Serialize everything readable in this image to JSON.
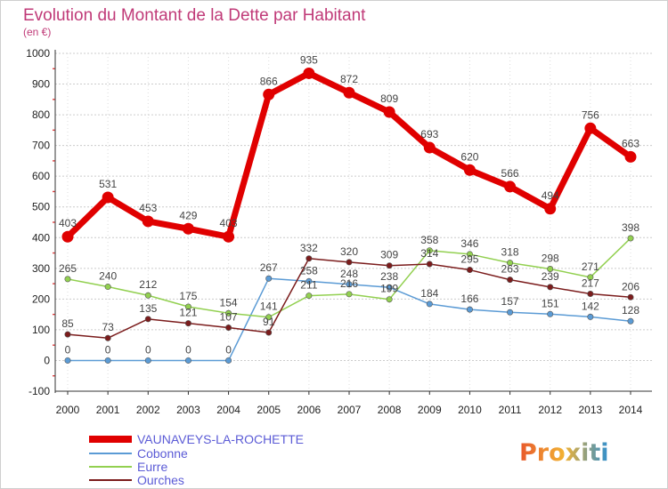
{
  "chart_data": {
    "type": "line",
    "title": "Evolution du Montant de la Dette par Habitant",
    "subtitle": "(en €)",
    "x": [
      2000,
      2001,
      2002,
      2003,
      2004,
      2005,
      2006,
      2007,
      2008,
      2009,
      2010,
      2011,
      2012,
      2013,
      2014
    ],
    "y_ticks": [
      -100,
      0,
      100,
      200,
      300,
      400,
      500,
      600,
      700,
      800,
      900,
      1000
    ],
    "ylim": [
      -100,
      1000
    ],
    "grid": "horizontal",
    "legend_position": "bottom-left",
    "series": [
      {
        "name": "VAUNAVEYS-LA-ROCHETTE",
        "color": "#e00000",
        "values": [
          403,
          531,
          453,
          429,
          403,
          866,
          935,
          872,
          809,
          693,
          620,
          566,
          494,
          756,
          663
        ],
        "labels": [
          "403",
          "531",
          "453",
          "429",
          "403",
          "866",
          "935",
          "872",
          "809",
          "693",
          "620",
          "566",
          "494",
          "756",
          "663"
        ]
      },
      {
        "name": "Cobonne",
        "color": "#5b9bd5",
        "values": [
          0,
          0,
          0,
          0,
          0,
          267,
          258,
          248,
          238,
          184,
          166,
          157,
          151,
          142,
          128
        ],
        "labels": [
          "0",
          "0",
          "0",
          "0",
          "0",
          "267",
          "258",
          "248",
          "238",
          "184",
          "166",
          "157",
          "151",
          "142",
          "128"
        ]
      },
      {
        "name": "Eurre",
        "color": "#92d050",
        "values": [
          265,
          240,
          212,
          175,
          154,
          141,
          211,
          216,
          199,
          358,
          346,
          318,
          298,
          271,
          398
        ],
        "labels": [
          "265",
          "240",
          "212",
          "175",
          "154",
          "141",
          "211",
          "216",
          "199",
          "358",
          "346",
          "318",
          "298",
          "271",
          "398"
        ]
      },
      {
        "name": "Ourches",
        "color": "#7b1c1c",
        "values": [
          85,
          73,
          135,
          121,
          107,
          91,
          332,
          320,
          309,
          314,
          295,
          263,
          239,
          217,
          206
        ],
        "labels": [
          "85",
          "73",
          "135",
          "121",
          "107",
          "91",
          "332",
          "320",
          "309",
          "314",
          "295",
          "263",
          "239",
          "217",
          "206"
        ]
      }
    ]
  },
  "branding": {
    "logo_text": "Proxiti"
  }
}
